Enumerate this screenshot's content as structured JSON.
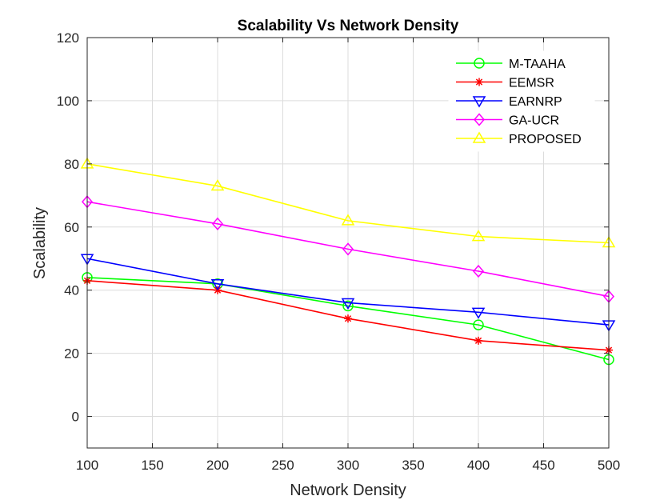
{
  "chart_data": {
    "type": "line",
    "title": "Scalability Vs Network Density",
    "xlabel": "Network Density",
    "ylabel": "Scalability",
    "x": [
      100,
      200,
      300,
      400,
      500
    ],
    "xlim": [
      100,
      500
    ],
    "ylim": [
      -10,
      120
    ],
    "xticks": [
      100,
      150,
      200,
      250,
      300,
      350,
      400,
      450,
      500
    ],
    "yticks": [
      0,
      20,
      40,
      60,
      80,
      100,
      120
    ],
    "grid": true,
    "legend_position": "top-right",
    "series": [
      {
        "name": "M-TAAHA",
        "values": [
          44,
          42,
          35,
          29,
          18
        ],
        "color": "#00ff00",
        "marker": "circle"
      },
      {
        "name": "EEMSR",
        "values": [
          43,
          40,
          31,
          24,
          21
        ],
        "color": "#ff0000",
        "marker": "asterisk"
      },
      {
        "name": "EARNRP",
        "values": [
          50,
          42,
          36,
          33,
          29
        ],
        "color": "#0000ff",
        "marker": "triangle-down"
      },
      {
        "name": "GA-UCR",
        "values": [
          68,
          61,
          53,
          46,
          38
        ],
        "color": "#ff00ff",
        "marker": "diamond"
      },
      {
        "name": "PROPOSED",
        "values": [
          80,
          73,
          62,
          57,
          55
        ],
        "color": "#ffff00",
        "marker": "triangle-up"
      }
    ]
  }
}
